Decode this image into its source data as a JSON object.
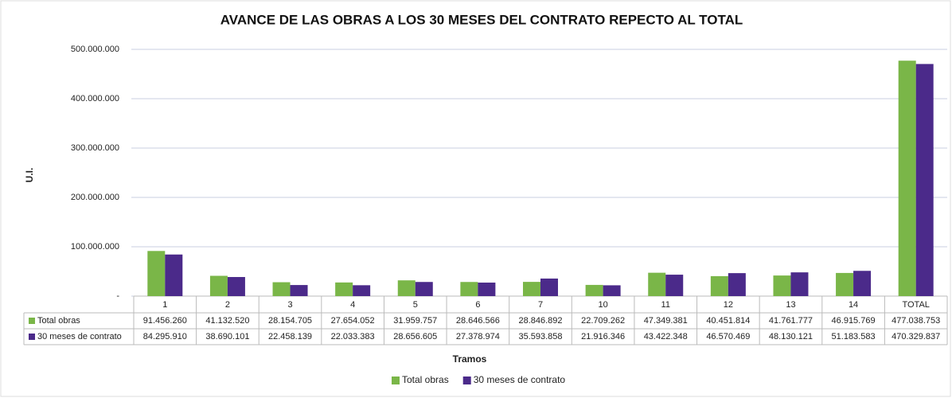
{
  "chart_data": {
    "type": "bar",
    "title": "AVANCE DE LAS OBRAS A LOS 30 MESES DEL CONTRATO REPECTO AL TOTAL",
    "y_label": "U.I.",
    "x_label": "Tramos",
    "categories": [
      "1",
      "2",
      "3",
      "4",
      "5",
      "6",
      "7",
      "10",
      "11",
      "12",
      "13",
      "14",
      "TOTAL"
    ],
    "series": [
      {
        "name": "Total obras",
        "color": "#7ab648",
        "values": [
          91456260,
          41132520,
          28154705,
          27654052,
          31959757,
          28646566,
          28846892,
          22709262,
          47349381,
          40451814,
          41761777,
          46915769,
          477038753
        ],
        "value_labels": [
          "91.456.260",
          "41.132.520",
          "28.154.705",
          "27.654.052",
          "31.959.757",
          "28.646.566",
          "28.846.892",
          "22.709.262",
          "47.349.381",
          "40.451.814",
          "41.761.777",
          "46.915.769",
          "477.038.753"
        ]
      },
      {
        "name": "30 meses de contrato",
        "color": "#4b2a8a",
        "values": [
          84295910,
          38690101,
          22458139,
          22033383,
          28656605,
          27378974,
          35593858,
          21916346,
          43422348,
          46570469,
          48130121,
          51183583,
          470329837
        ],
        "value_labels": [
          "84.295.910",
          "38.690.101",
          "22.458.139",
          "22.033.383",
          "28.656.605",
          "27.378.974",
          "35.593.858",
          "21.916.346",
          "43.422.348",
          "46.570.469",
          "48.130.121",
          "51.183.583",
          "470.329.837"
        ]
      }
    ],
    "ylim": [
      0,
      500000000
    ],
    "yticks": [
      {
        "value": 0,
        "label": "-"
      },
      {
        "value": 100000000,
        "label": "100.000.000"
      },
      {
        "value": 200000000,
        "label": "200.000.000"
      },
      {
        "value": 300000000,
        "label": "300.000.000"
      },
      {
        "value": 400000000,
        "label": "400.000.000"
      },
      {
        "value": 500000000,
        "label": "500.000.000"
      }
    ],
    "grid": true,
    "legend": "bottom"
  }
}
